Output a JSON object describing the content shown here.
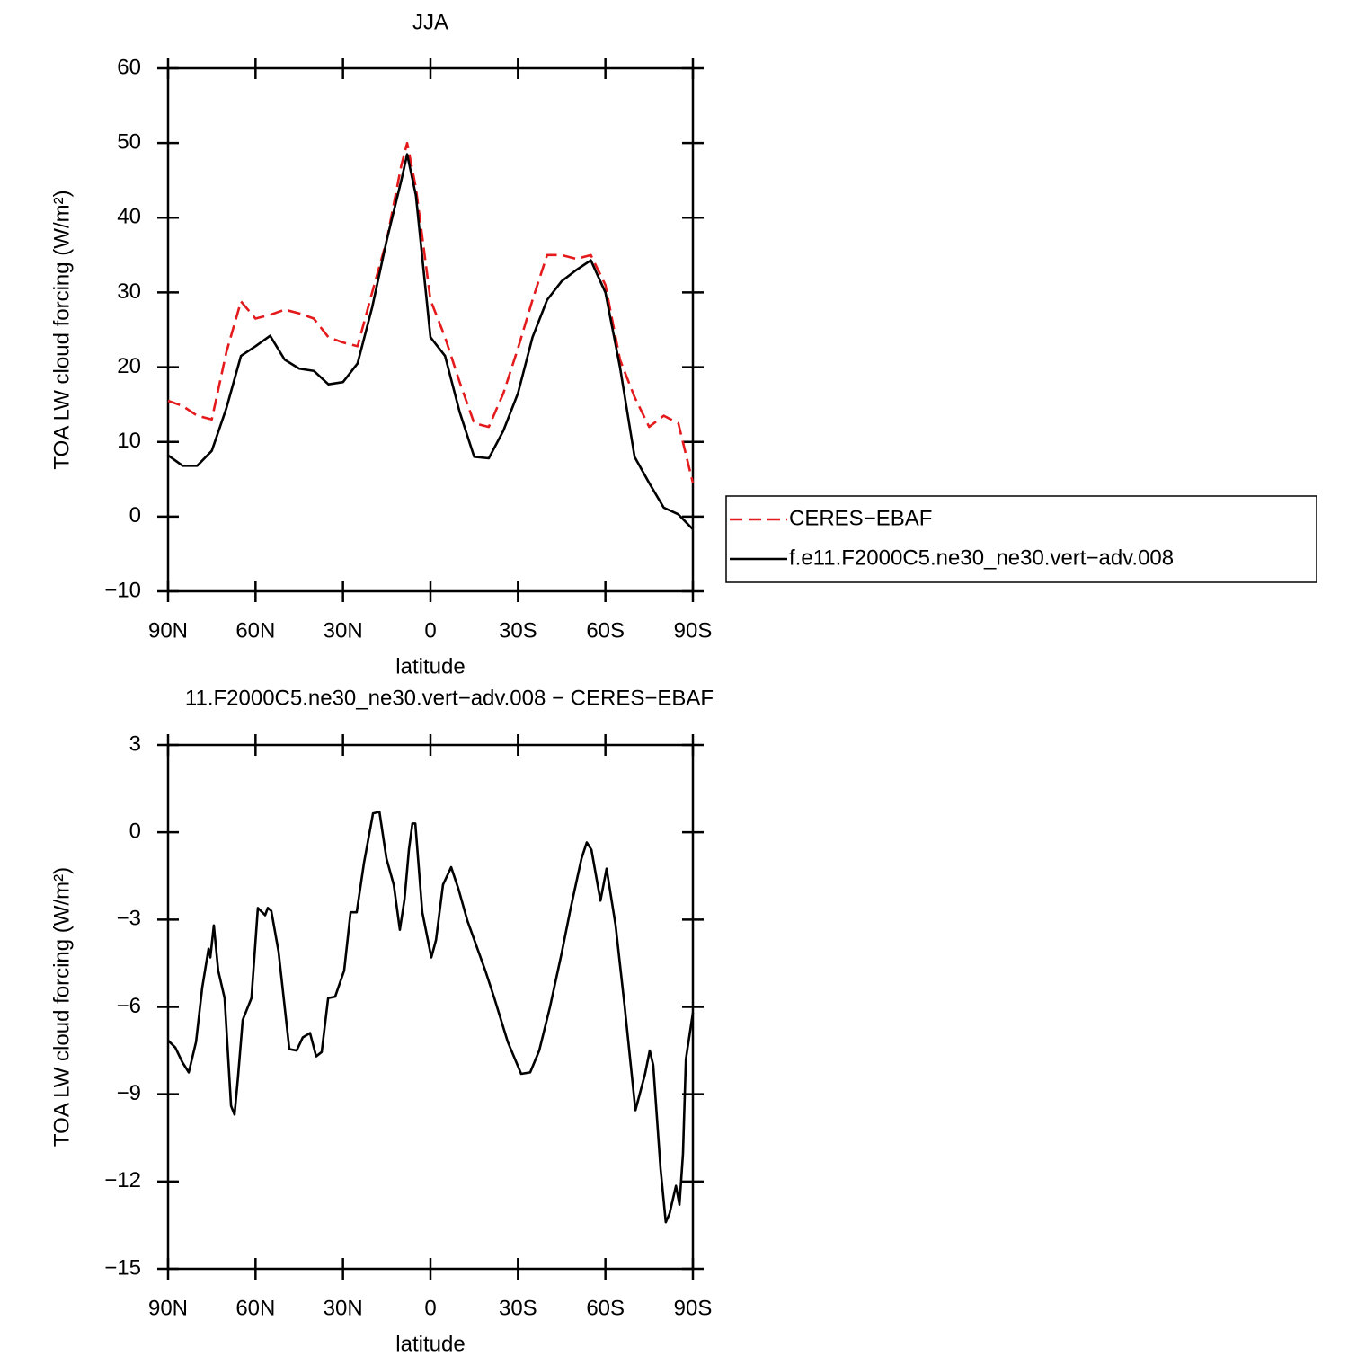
{
  "chart_data": [
    {
      "type": "line",
      "title": "JJA",
      "ylabel": "TOA LW cloud forcing (W/m²)",
      "xlabel": "latitude",
      "x": [
        90,
        85,
        80,
        75,
        70,
        65,
        60,
        55,
        50,
        45,
        40,
        35,
        30,
        25,
        20,
        15,
        10,
        8,
        5,
        0,
        -5,
        -10,
        -15,
        -20,
        -25,
        -30,
        -35,
        -40,
        -45,
        -50,
        -55,
        -60,
        -65,
        -70,
        -75,
        -80,
        -85,
        -90
      ],
      "series": [
        {
          "name": "CERES−EBAF",
          "color": "#e41a1c",
          "dashed": true,
          "values": [
            15.5,
            14.8,
            13.5,
            13,
            22,
            28.8,
            26.5,
            27,
            27.7,
            27.2,
            26.5,
            24,
            23.3,
            22.8,
            30,
            37,
            47,
            50,
            44,
            29,
            24,
            18,
            12.5,
            12,
            16.5,
            22.5,
            29,
            35,
            35,
            34.5,
            35,
            31,
            21,
            16,
            12,
            13.5,
            12.5,
            4.5
          ]
        },
        {
          "name": "f.e11.F2000C5.ne30_ne30.vert−adv.008",
          "color": "#000000",
          "dashed": false,
          "values": [
            8.2,
            6.8,
            6.8,
            8.8,
            14.5,
            21.5,
            22.8,
            24.2,
            21,
            19.8,
            19.5,
            17.7,
            18,
            20.5,
            28,
            37,
            45,
            48.5,
            43,
            24,
            21.5,
            14,
            8,
            7.8,
            11.5,
            16.5,
            24,
            29,
            31.5,
            33,
            34.3,
            30,
            20,
            8,
            4.5,
            1.2,
            0.3,
            -1.7
          ]
        }
      ],
      "legend": "right",
      "xlim": [
        90,
        -90
      ],
      "xticks": [
        {
          "value": 90,
          "label": "90N"
        },
        {
          "value": 60,
          "label": "60N"
        },
        {
          "value": 30,
          "label": "30N"
        },
        0,
        {
          "value": -30,
          "label": "30S"
        },
        {
          "value": -60,
          "label": "60S"
        },
        {
          "value": -90,
          "label": "90S"
        }
      ],
      "ylim": [
        -10,
        60
      ],
      "yticks": [
        {
          "value": -10,
          "label": "−10"
        },
        0,
        10,
        20,
        30,
        40,
        50,
        60
      ]
    },
    {
      "type": "line",
      "title": "11.F2000C5.ne30_ne30.vert−adv.008 − CERES−EBAF",
      "ylabel": "TOA LW cloud forcing (W/m²)",
      "xlabel": "latitude",
      "x": [
        90,
        87.5,
        85.1,
        82.9,
        80.4,
        78.3,
        76.1,
        75.5,
        74.3,
        72.8,
        70.6,
        68.4,
        67.2,
        66,
        64.4,
        61.4,
        59.2,
        56.7,
        55.8,
        54.6,
        52.1,
        48.4,
        45.9,
        43.8,
        41.3,
        39.2,
        37.3,
        35.1,
        32.7,
        29.6,
        27.4,
        25.3,
        22.8,
        19.7,
        17.5,
        15.1,
        12.6,
        10.5,
        8.9,
        7.4,
        6.2,
        5.2,
        2.8,
        -0.3,
        -1.9,
        -4.3,
        -7.1,
        -9.6,
        -12.7,
        -18.8,
        -21.9,
        -26.5,
        -31.1,
        -34.2,
        -37.3,
        -41,
        -45,
        -48.1,
        -51.8,
        -53.6,
        -55.2,
        -58.3,
        -60.4,
        -63.5,
        -66.6,
        -70.3,
        -73.6,
        -75.2,
        -76.4,
        -78.9,
        -80.7,
        -82,
        -84.2,
        -85.4,
        -86.6,
        -87.6,
        -90
      ],
      "series": [
        {
          "color": "#000000",
          "values": [
            -7.15,
            -7.4,
            -7.9,
            -8.25,
            -7.2,
            -5.35,
            -4,
            -4.3,
            -3.2,
            -4.75,
            -5.7,
            -9.4,
            -9.7,
            -8.4,
            -6.45,
            -5.7,
            -2.6,
            -2.85,
            -2.6,
            -2.7,
            -4.1,
            -7.45,
            -7.5,
            -7.05,
            -6.9,
            -7.7,
            -7.55,
            -5.7,
            -5.65,
            -4.75,
            -2.75,
            -2.75,
            -1.05,
            0.65,
            0.7,
            -0.9,
            -1.8,
            -3.35,
            -2.3,
            -0.6,
            0.3,
            0.3,
            -2.75,
            -4.3,
            -3.7,
            -1.8,
            -1.2,
            -1.95,
            -3.05,
            -4.75,
            -5.7,
            -7.2,
            -8.3,
            -8.25,
            -7.5,
            -6,
            -4.15,
            -2.6,
            -0.9,
            -0.35,
            -0.6,
            -2.35,
            -1.25,
            -3.2,
            -5.98,
            -9.55,
            -8.3,
            -7.5,
            -8,
            -11.55,
            -13.4,
            -13.1,
            -12.15,
            -12.8,
            -11.05,
            -7.8,
            -6.2
          ]
        }
      ],
      "xlim": [
        90,
        -90
      ],
      "xticks": [
        {
          "value": 90,
          "label": "90N"
        },
        {
          "value": 60,
          "label": "60N"
        },
        {
          "value": 30,
          "label": "30N"
        },
        0,
        {
          "value": -30,
          "label": "30S"
        },
        {
          "value": -60,
          "label": "60S"
        },
        {
          "value": -90,
          "label": "90S"
        }
      ],
      "ylim": [
        -15,
        3
      ],
      "yticks": [
        {
          "value": -15,
          "label": "−15"
        },
        {
          "value": -12,
          "label": "−12"
        },
        {
          "value": -9,
          "label": "−9"
        },
        {
          "value": -6,
          "label": "−6"
        },
        {
          "value": -3,
          "label": "−3"
        },
        0,
        3
      ]
    }
  ]
}
